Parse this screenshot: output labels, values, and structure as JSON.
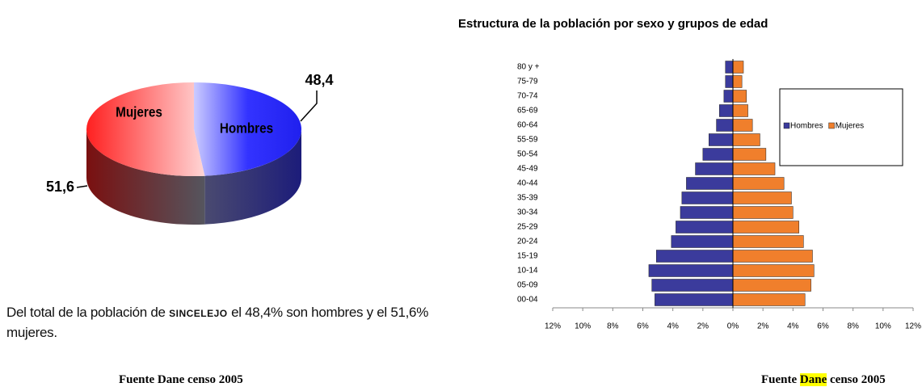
{
  "chart_data": [
    {
      "type": "pie",
      "categories": [
        "Hombres",
        "Mujeres"
      ],
      "values": [
        48.4,
        51.6
      ],
      "value_labels": [
        "48,4",
        "51,6"
      ],
      "colors": [
        "#3333ff",
        "#ff3333"
      ]
    },
    {
      "type": "pyramid",
      "title": "Estructura de la población por sexo y grupos de edad",
      "categories": [
        "00-04",
        "05-09",
        "10-14",
        "15-19",
        "20-24",
        "25-29",
        "30-34",
        "35-39",
        "40-44",
        "45-49",
        "50-54",
        "55-59",
        "60-64",
        "65-69",
        "70-74",
        "75-79",
        "80 y +"
      ],
      "series": [
        {
          "name": "Hombres",
          "color": "#3b3b9c",
          "values": [
            -5.2,
            -5.4,
            -5.6,
            -5.1,
            -4.1,
            -3.8,
            -3.5,
            -3.4,
            -3.1,
            -2.5,
            -2.0,
            -1.6,
            -1.1,
            -0.9,
            -0.6,
            -0.5,
            -0.5
          ]
        },
        {
          "name": "Mujeres",
          "color": "#f07f2c",
          "values": [
            4.8,
            5.2,
            5.4,
            5.3,
            4.7,
            4.4,
            4.0,
            3.9,
            3.4,
            2.8,
            2.2,
            1.8,
            1.3,
            1.0,
            0.9,
            0.6,
            0.7
          ]
        }
      ],
      "xlim": [
        -12,
        12
      ],
      "xticks": [
        {
          "value": -12,
          "label": "12%"
        },
        {
          "value": -10,
          "label": "10%"
        },
        {
          "value": -8,
          "label": "8%"
        },
        {
          "value": -6,
          "label": "6%"
        },
        {
          "value": -4,
          "label": "4%"
        },
        {
          "value": -2,
          "label": "2%"
        },
        {
          "value": 0,
          "label": "0%"
        },
        {
          "value": 2,
          "label": "2%"
        },
        {
          "value": 4,
          "label": "4%"
        },
        {
          "value": 6,
          "label": "6%"
        },
        {
          "value": 8,
          "label": "8%"
        },
        {
          "value": 10,
          "label": "10%"
        },
        {
          "value": 12,
          "label": "12%"
        }
      ],
      "legend": "right"
    }
  ],
  "paragraph": {
    "before": "Del total de la población de ",
    "city": "SINCELEJO",
    "after": " el 48,4% son hombres y el 51,6% mujeres."
  },
  "sources": {
    "left": "Fuente Dane censo 2005",
    "right_before": "Fuente ",
    "right_highlight": "Dane",
    "right_after": " censo 2005"
  }
}
